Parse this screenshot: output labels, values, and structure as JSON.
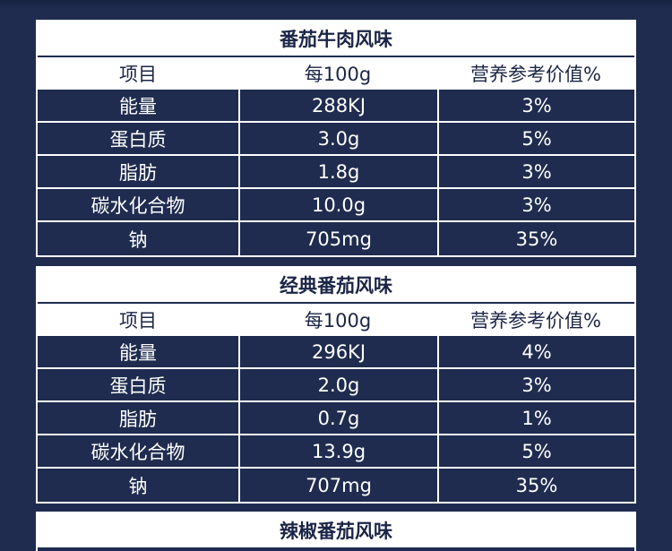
{
  "tables": [
    {
      "title": "番茄牛肉风味",
      "headers": [
        "项目",
        "每100g",
        "营养参考价值%"
      ],
      "rows": [
        [
          "能量",
          "288KJ",
          "3%"
        ],
        [
          "蛋白质",
          "3.0g",
          "5%"
        ],
        [
          "脂肪",
          "1.8g",
          "3%"
        ],
        [
          "碳水化合物",
          "10.0g",
          "3%"
        ],
        [
          "钠",
          "705mg",
          "35%"
        ]
      ]
    },
    {
      "title": "经典番茄风味",
      "headers": [
        "项目",
        "每100g",
        "营养参考价值%"
      ],
      "rows": [
        [
          "能量",
          "296KJ",
          "4%"
        ],
        [
          "蛋白质",
          "2.0g",
          "3%"
        ],
        [
          "脂肪",
          "0.7g",
          "1%"
        ],
        [
          "碳水化合物",
          "13.9g",
          "5%"
        ],
        [
          "钠",
          "707mg",
          "35%"
        ]
      ]
    },
    {
      "title": "辣椒番茄风味"
    }
  ],
  "colors": {
    "background": "#1f2c4f",
    "header": "#ffffff",
    "title_text": "#1b2546"
  }
}
